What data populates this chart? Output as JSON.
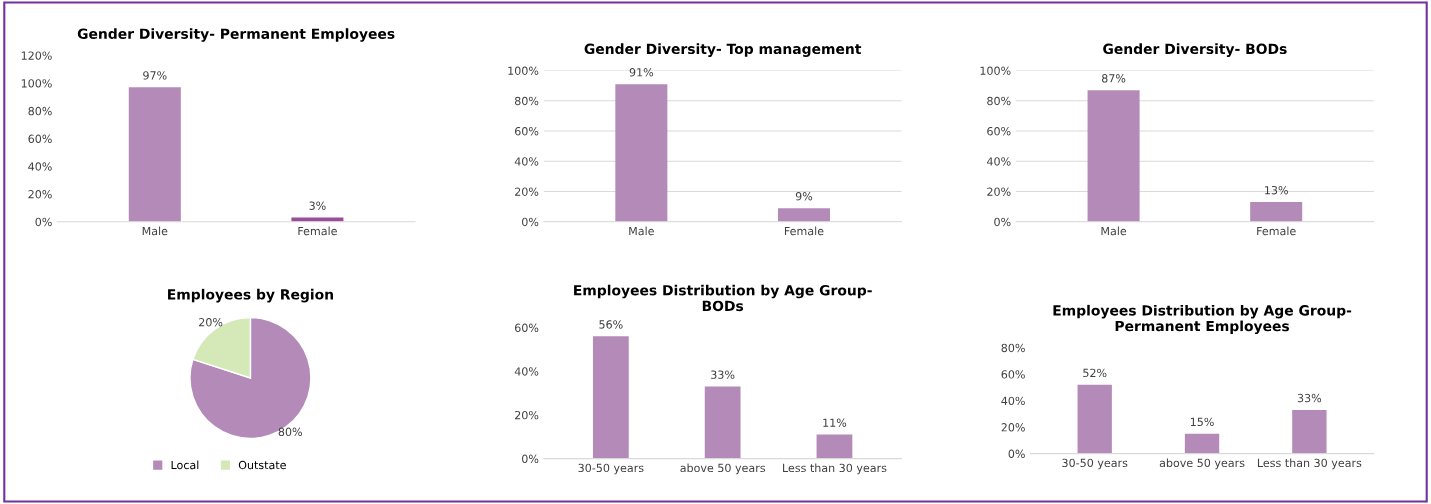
{
  "chart_data": [
    {
      "type": "bar",
      "title": "Gender Diversity- Permanent Employees",
      "categories": [
        "Male",
        "Female"
      ],
      "values": [
        97,
        3
      ],
      "value_labels": [
        "97%",
        "3%"
      ],
      "colors": [
        "#b48ab8",
        "#9a4e9a"
      ],
      "ylim": [
        0,
        120
      ],
      "yticks": [
        {
          "value": 0,
          "label": "0%"
        },
        {
          "value": 20,
          "label": "20%"
        },
        {
          "value": 40,
          "label": "40%"
        },
        {
          "value": 60,
          "label": "60%"
        },
        {
          "value": 80,
          "label": "80%"
        },
        {
          "value": 100,
          "label": "100%"
        },
        {
          "value": 120,
          "label": "120%"
        }
      ],
      "grid": false
    },
    {
      "type": "bar",
      "title": "Gender Diversity- Top management",
      "categories": [
        "Male",
        "Female"
      ],
      "values": [
        91,
        9
      ],
      "value_labels": [
        "91%",
        "9%"
      ],
      "colors": [
        "#b48ab8",
        "#b48ab8"
      ],
      "ylim": [
        0,
        100
      ],
      "yticks": [
        {
          "value": 0,
          "label": "0%"
        },
        {
          "value": 20,
          "label": "20%"
        },
        {
          "value": 40,
          "label": "40%"
        },
        {
          "value": 60,
          "label": "60%"
        },
        {
          "value": 80,
          "label": "80%"
        },
        {
          "value": 100,
          "label": "100%"
        }
      ],
      "grid": "y"
    },
    {
      "type": "bar",
      "title": "Gender Diversity- BODs",
      "categories": [
        "Male",
        "Female"
      ],
      "values": [
        87,
        13
      ],
      "value_labels": [
        "87%",
        "13%"
      ],
      "colors": [
        "#b48ab8",
        "#b48ab8"
      ],
      "ylim": [
        0,
        100
      ],
      "yticks": [
        {
          "value": 0,
          "label": "0%"
        },
        {
          "value": 20,
          "label": "20%"
        },
        {
          "value": 40,
          "label": "40%"
        },
        {
          "value": 60,
          "label": "60%"
        },
        {
          "value": 80,
          "label": "80%"
        },
        {
          "value": 100,
          "label": "100%"
        }
      ],
      "grid": "y"
    },
    {
      "type": "pie",
      "title": "Employees by Region",
      "categories": [
        "Local",
        "Outstate"
      ],
      "values": [
        80,
        20
      ],
      "value_labels": [
        "80%",
        "20%"
      ],
      "colors": [
        "#b48ab8",
        "#d5e8b8"
      ],
      "legend": "bottom left"
    },
    {
      "type": "bar",
      "title": "Employees Distribution by Age Group-\nBODs",
      "categories": [
        "30-50 years",
        "above 50 years",
        "Less than 30 years"
      ],
      "values": [
        56,
        33,
        11
      ],
      "value_labels": [
        "56%",
        "33%",
        "11%"
      ],
      "colors": [
        "#b48ab8",
        "#b48ab8",
        "#b48ab8"
      ],
      "ylim": [
        0,
        60
      ],
      "yticks": [
        {
          "value": 0,
          "label": "0%"
        },
        {
          "value": 20,
          "label": "20%"
        },
        {
          "value": 40,
          "label": "40%"
        },
        {
          "value": 60,
          "label": "60%"
        }
      ],
      "grid": false
    },
    {
      "type": "bar",
      "title": "Employees Distribution by Age Group-\nPermanent Employees",
      "categories": [
        "30-50 years",
        "above 50 years",
        "Less than 30 years"
      ],
      "values": [
        52,
        15,
        33
      ],
      "value_labels": [
        "52%",
        "15%",
        "33%"
      ],
      "colors": [
        "#b48ab8",
        "#b48ab8",
        "#b48ab8"
      ],
      "ylim": [
        0,
        80
      ],
      "yticks": [
        {
          "value": 0,
          "label": "0%"
        },
        {
          "value": 20,
          "label": "20%"
        },
        {
          "value": 40,
          "label": "40%"
        },
        {
          "value": 60,
          "label": "60%"
        },
        {
          "value": 80,
          "label": "80%"
        }
      ],
      "grid": false
    }
  ]
}
